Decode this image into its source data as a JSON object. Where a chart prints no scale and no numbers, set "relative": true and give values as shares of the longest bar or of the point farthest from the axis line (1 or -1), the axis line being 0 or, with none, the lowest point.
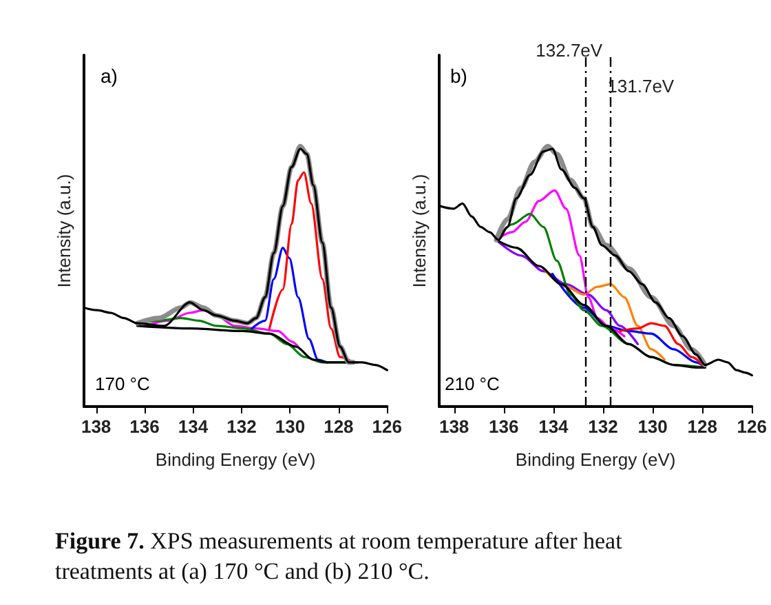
{
  "chart_data": [
    {
      "type": "line",
      "relative": true,
      "marker": "none",
      "xlim": [
        138.5,
        126
      ],
      "xticks": [
        138,
        136,
        134,
        132,
        130,
        128,
        126
      ],
      "xlabel": "Binding Energy (eV)",
      "ylabel": "Intensity (a.u.)",
      "annotations": [
        "a)",
        "170 °C"
      ],
      "series": [
        {
          "color": "#ff00ff",
          "x": [
            135.94,
            135.04,
            134.13,
            133.58,
            133.04,
            132.3,
            131.4,
            130.49,
            129.94,
            129.67
          ],
          "values": [
            0.31,
            0.33,
            0.36,
            0.37,
            0.35,
            0.31,
            0.3,
            0.29,
            0.25,
            0.23
          ]
        },
        {
          "color": "#008000",
          "x": [
            136.3,
            135.4,
            134.5,
            133.76,
            133.04,
            131.94,
            130.85,
            130.13,
            129.4,
            128.67,
            127.94,
            127.21
          ],
          "values": [
            0.32,
            0.33,
            0.34,
            0.33,
            0.31,
            0.3,
            0.28,
            0.24,
            0.19,
            0.17,
            0.17,
            0.17
          ]
        },
        {
          "color": "#0000ff",
          "x": [
            131.58,
            131.03,
            130.67,
            130.3,
            130.03,
            129.67,
            129.22,
            128.85,
            128.49
          ],
          "values": [
            0.3,
            0.33,
            0.49,
            0.61,
            0.57,
            0.42,
            0.26,
            0.18,
            0.17
          ]
        },
        {
          "color": "#ff0000",
          "x": [
            130.85,
            130.3,
            129.94,
            129.67,
            129.43,
            129.13,
            128.67,
            128.31,
            127.94,
            127.4
          ],
          "values": [
            0.3,
            0.45,
            0.7,
            0.87,
            0.9,
            0.78,
            0.49,
            0.3,
            0.19,
            0.17
          ]
        },
        {
          "color": "#000000",
          "x": [
            136.3,
            134.13,
            131.94,
            130.85,
            129.76,
            129.04,
            128.49,
            127.4
          ],
          "values": [
            0.31,
            0.3,
            0.29,
            0.28,
            0.23,
            0.18,
            0.17,
            0.17
          ]
        },
        {
          "color": "#8c8c8c",
          "x": [
            136.3,
            135.4,
            134.5,
            134.13,
            133.58,
            133.04,
            132.3,
            131.76,
            131.4,
            131.03,
            130.67,
            130.3,
            129.94,
            129.58,
            129.31,
            129.04,
            128.67,
            128.31,
            127.94,
            127.58,
            127.4
          ],
          "values": [
            0.32,
            0.34,
            0.38,
            0.4,
            0.38,
            0.35,
            0.33,
            0.32,
            0.34,
            0.42,
            0.59,
            0.77,
            0.92,
            1.0,
            0.97,
            0.85,
            0.63,
            0.38,
            0.23,
            0.17,
            0.17
          ]
        },
        {
          "color": "#000000",
          "x": [
            138.5,
            137.95,
            137.4,
            136.85,
            136.3,
            135.2,
            134.13,
            133.58,
            133.04,
            132.3,
            131.76,
            131.4,
            131.03,
            130.67,
            130.3,
            129.94,
            129.58,
            129.31,
            129.04,
            128.67,
            128.31,
            127.94,
            127.58,
            127.03,
            126.49,
            126.0
          ],
          "values": [
            0.38,
            0.37,
            0.36,
            0.34,
            0.32,
            0.31,
            0.4,
            0.37,
            0.35,
            0.33,
            0.32,
            0.34,
            0.42,
            0.59,
            0.77,
            0.92,
            0.99,
            0.97,
            0.85,
            0.63,
            0.38,
            0.23,
            0.17,
            0.17,
            0.16,
            0.14
          ]
        }
      ]
    },
    {
      "type": "line",
      "relative": true,
      "marker": "none",
      "xlim": [
        138.6,
        126
      ],
      "xticks": [
        138,
        136,
        134,
        132,
        130,
        128,
        126
      ],
      "xlabel": "Binding Energy (eV)",
      "ylabel": "Intensity (a.u.)",
      "annotations": [
        "b)",
        "210 °C",
        "Figure 7. XPS measurements at room temperature after heat treatments at (a) 170 °C and (b) 210 °C."
      ],
      "ref_lines": [
        {
          "axis": "x",
          "value": 132.7,
          "label": "132.7eV",
          "line_style": "dashed",
          "color": "#000000"
        },
        {
          "axis": "x",
          "value": 131.7,
          "label": "131.7eV",
          "line_style": "dashed",
          "color": "#000000"
        }
      ],
      "series": [
        {
          "color": "#8000ff",
          "x": [
            136.3,
            135.3,
            134.4,
            133.49,
            132.59,
            131.87,
            131.32,
            130.6
          ],
          "values": [
            0.64,
            0.58,
            0.52,
            0.47,
            0.43,
            0.37,
            0.31,
            0.24
          ]
        },
        {
          "color": "#ff8000",
          "x": [
            134.4,
            133.49,
            132.77,
            132.23,
            131.69,
            131.14,
            130.6,
            130.06,
            129.52
          ],
          "values": [
            0.53,
            0.46,
            0.43,
            0.46,
            0.47,
            0.42,
            0.31,
            0.22,
            0.18
          ]
        },
        {
          "color": "#0000ff",
          "x": [
            134.04,
            132.77,
            131.87,
            130.96,
            130.06,
            129.15,
            128.25,
            127.89
          ],
          "values": [
            0.51,
            0.38,
            0.31,
            0.29,
            0.28,
            0.22,
            0.17,
            0.15
          ]
        },
        {
          "color": "#ff0000",
          "x": [
            131.32,
            130.6,
            130.06,
            129.52,
            128.97,
            128.43,
            127.89
          ],
          "values": [
            0.29,
            0.3,
            0.32,
            0.31,
            0.24,
            0.19,
            0.15
          ]
        },
        {
          "color": "#ff00ff",
          "x": [
            136.3,
            135.67,
            135.12,
            134.58,
            133.95,
            133.49,
            132.95,
            132.59,
            132.23,
            131.69,
            131.14
          ],
          "values": [
            0.64,
            0.67,
            0.71,
            0.79,
            0.83,
            0.76,
            0.58,
            0.42,
            0.34,
            0.3,
            0.27
          ]
        },
        {
          "color": "#008000",
          "x": [
            136.3,
            135.67,
            134.94,
            134.4,
            133.86,
            133.31,
            132.77,
            132.05,
            130.96,
            130.06,
            129.15,
            127.89
          ],
          "values": [
            0.64,
            0.7,
            0.74,
            0.69,
            0.56,
            0.43,
            0.37,
            0.31,
            0.24,
            0.19,
            0.16,
            0.15
          ]
        },
        {
          "color": "#000000",
          "x": [
            136.3,
            135.49,
            134.58,
            133.67,
            132.77,
            131.87,
            130.96,
            130.06,
            129.15,
            128.25,
            127.89
          ],
          "values": [
            0.64,
            0.61,
            0.54,
            0.47,
            0.39,
            0.31,
            0.24,
            0.19,
            0.16,
            0.15,
            0.15
          ]
        },
        {
          "color": "#8c8c8c",
          "x": [
            136.3,
            135.85,
            135.3,
            134.76,
            134.22,
            133.86,
            133.31,
            132.77,
            132.41,
            131.87,
            130.96,
            130.06,
            129.15,
            128.43,
            127.89
          ],
          "values": [
            0.64,
            0.72,
            0.84,
            0.94,
            1.0,
            0.97,
            0.87,
            0.8,
            0.69,
            0.62,
            0.53,
            0.42,
            0.31,
            0.22,
            0.16
          ]
        },
        {
          "color": "#000000",
          "x": [
            138.56,
            138.02,
            137.66,
            137.29,
            136.93,
            136.57,
            136.21,
            135.85,
            135.49,
            134.94,
            134.4,
            134.04,
            133.67,
            133.13,
            132.77,
            132.41,
            132.05,
            131.5,
            130.96,
            130.42,
            129.88,
            129.34,
            128.79,
            128.25,
            127.89,
            127.35,
            126.98,
            126.62,
            126.26,
            126.0
          ],
          "values": [
            0.77,
            0.76,
            0.78,
            0.73,
            0.69,
            0.67,
            0.64,
            0.69,
            0.8,
            0.89,
            0.98,
            0.99,
            0.91,
            0.84,
            0.8,
            0.69,
            0.62,
            0.58,
            0.52,
            0.47,
            0.4,
            0.34,
            0.27,
            0.2,
            0.16,
            0.18,
            0.17,
            0.14,
            0.13,
            0.12
          ]
        }
      ]
    }
  ]
}
